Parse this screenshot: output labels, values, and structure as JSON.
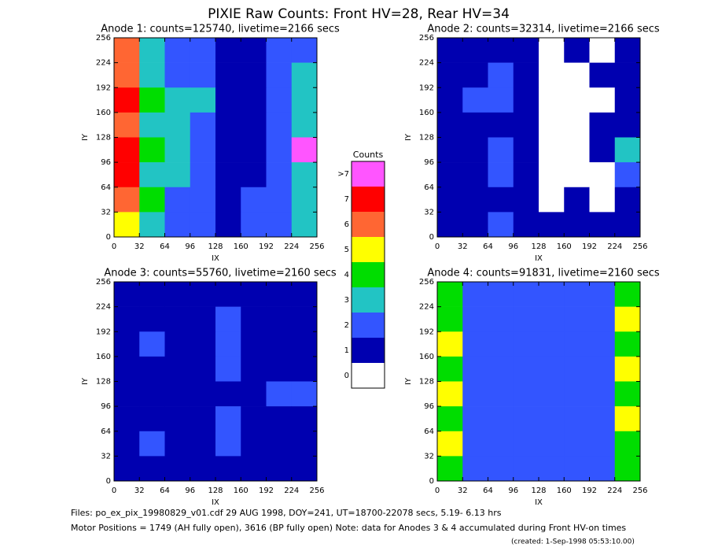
{
  "title": "PIXIE Raw Counts:  Front HV=28, Rear HV=34",
  "chart_data": [
    {
      "type": "heatmap",
      "title": "Anode 1: counts=125740, livetime=2166 secs",
      "x_label": "IX",
      "y_label": "IY",
      "xlim": [
        0,
        256
      ],
      "ylim": [
        0,
        256
      ],
      "xticks": [
        0,
        32,
        64,
        96,
        128,
        160,
        192,
        224,
        256
      ],
      "yticks": [
        0,
        32,
        64,
        96,
        128,
        160,
        192,
        224,
        256
      ],
      "z": [
        [
          6,
          3,
          2,
          2,
          1,
          1,
          2,
          2
        ],
        [
          6,
          3,
          2,
          2,
          1,
          1,
          2,
          3
        ],
        [
          7,
          4,
          3,
          3,
          1,
          1,
          2,
          3
        ],
        [
          6,
          3,
          3,
          2,
          1,
          1,
          2,
          3
        ],
        [
          7,
          4,
          3,
          2,
          1,
          1,
          2,
          8
        ],
        [
          7,
          3,
          3,
          2,
          1,
          1,
          2,
          3
        ],
        [
          6,
          4,
          2,
          2,
          1,
          2,
          2,
          3
        ],
        [
          5,
          3,
          2,
          2,
          1,
          2,
          2,
          3
        ]
      ]
    },
    {
      "type": "heatmap",
      "title": "Anode 2: counts=32314, livetime=2166 secs",
      "x_label": "IX",
      "y_label": "IY",
      "xlim": [
        0,
        256
      ],
      "ylim": [
        0,
        256
      ],
      "xticks": [
        0,
        32,
        64,
        96,
        128,
        160,
        192,
        224,
        256
      ],
      "yticks": [
        0,
        32,
        64,
        96,
        128,
        160,
        192,
        224,
        256
      ],
      "z": [
        [
          1,
          1,
          1,
          1,
          0,
          1,
          0,
          1
        ],
        [
          1,
          1,
          2,
          1,
          0,
          0,
          1,
          1
        ],
        [
          1,
          2,
          2,
          1,
          0,
          0,
          0,
          1
        ],
        [
          1,
          1,
          1,
          1,
          0,
          0,
          1,
          1
        ],
        [
          1,
          1,
          2,
          1,
          0,
          0,
          1,
          3
        ],
        [
          1,
          1,
          2,
          1,
          0,
          0,
          0,
          2
        ],
        [
          1,
          1,
          1,
          1,
          0,
          1,
          0,
          1
        ],
        [
          1,
          1,
          2,
          1,
          1,
          1,
          1,
          1
        ]
      ]
    },
    {
      "type": "heatmap",
      "title": "Anode 3: counts=55760, livetime=2160 secs",
      "x_label": "IX",
      "y_label": "IY",
      "xlim": [
        0,
        256
      ],
      "ylim": [
        0,
        256
      ],
      "xticks": [
        0,
        32,
        64,
        96,
        128,
        160,
        192,
        224,
        256
      ],
      "yticks": [
        0,
        32,
        64,
        96,
        128,
        160,
        192,
        224,
        256
      ],
      "z": [
        [
          1,
          1,
          1,
          1,
          1,
          1,
          1,
          1
        ],
        [
          1,
          1,
          1,
          1,
          2,
          1,
          1,
          1
        ],
        [
          1,
          2,
          1,
          1,
          2,
          1,
          1,
          1
        ],
        [
          1,
          1,
          1,
          1,
          2,
          1,
          1,
          1
        ],
        [
          1,
          1,
          1,
          1,
          1,
          1,
          2,
          2
        ],
        [
          1,
          1,
          1,
          1,
          2,
          1,
          1,
          1
        ],
        [
          1,
          2,
          1,
          1,
          2,
          1,
          1,
          1
        ],
        [
          1,
          1,
          1,
          1,
          1,
          1,
          1,
          1
        ]
      ]
    },
    {
      "type": "heatmap",
      "title": "Anode 4: counts=91831, livetime=2160 secs",
      "x_label": "IX",
      "y_label": "IY",
      "xlim": [
        0,
        256
      ],
      "ylim": [
        0,
        256
      ],
      "xticks": [
        0,
        32,
        64,
        96,
        128,
        160,
        192,
        224,
        256
      ],
      "yticks": [
        0,
        32,
        64,
        96,
        128,
        160,
        192,
        224,
        256
      ],
      "z": [
        [
          4,
          2,
          2,
          2,
          2,
          2,
          2,
          4
        ],
        [
          4,
          2,
          2,
          2,
          2,
          2,
          2,
          5
        ],
        [
          5,
          2,
          2,
          2,
          2,
          2,
          2,
          4
        ],
        [
          4,
          2,
          2,
          2,
          2,
          2,
          2,
          5
        ],
        [
          5,
          2,
          2,
          2,
          2,
          2,
          2,
          4
        ],
        [
          4,
          2,
          2,
          2,
          2,
          2,
          2,
          5
        ],
        [
          5,
          2,
          2,
          2,
          2,
          2,
          2,
          4
        ],
        [
          4,
          2,
          2,
          2,
          2,
          2,
          2,
          4
        ]
      ]
    }
  ],
  "colorbar": {
    "title": "Counts",
    "categories": [
      ">7",
      "7",
      "6",
      "5",
      "4",
      "3",
      "2",
      "1",
      "0"
    ],
    "colors": [
      "#ff55ff",
      "#ff0000",
      "#ff6633",
      "#ffff00",
      "#00dd00",
      "#22c4c4",
      "#3355ff",
      "#0000b0",
      "#ffffff"
    ]
  },
  "notes": [
    "Files: po_ex_pix_19980829_v01.cdf    29 AUG 1998, DOY=241, UT=18700-22078 secs,  5.19- 6.13 hrs",
    "Motor Positions = 1749 (AH fully open), 3616 (BP fully open)    Note: data for Anodes 3 & 4 accumulated during Front HV-on times",
    "(created:  1-Sep-1998 05:53:10.00)"
  ]
}
